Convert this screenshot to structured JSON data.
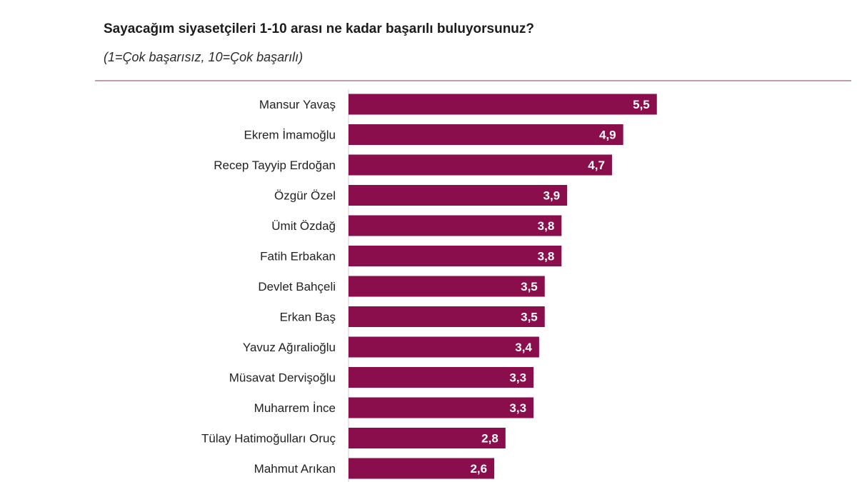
{
  "chart_data": {
    "type": "bar",
    "orientation": "horizontal",
    "title": "Sayacağım siyasetçileri 1-10 arası ne kadar başarılı buluyorsunuz?",
    "subtitle": "(1=Çok başarısız, 10=Çok başarılı)",
    "categories": [
      "Mansur Yavaş",
      "Ekrem İmamoğlu",
      "Recep Tayyip Erdoğan",
      "Özgür Özel",
      "Ümit Özdağ",
      "Fatih Erbakan",
      "Devlet Bahçeli",
      "Erkan Baş",
      "Yavuz Ağıralioğlu",
      "Müsavat Dervişoğlu",
      "Muharrem İnce",
      "Tülay Hatimoğulları Oruç",
      "Mahmut Arıkan"
    ],
    "values": [
      5.5,
      4.9,
      4.7,
      3.9,
      3.8,
      3.8,
      3.5,
      3.5,
      3.4,
      3.3,
      3.3,
      2.8,
      2.6
    ],
    "data_labels": [
      "5,5",
      "4,9",
      "4,7",
      "3,9",
      "3,8",
      "3,8",
      "3,5",
      "3,5",
      "3,4",
      "3,3",
      "3,3",
      "2,8",
      "2,6"
    ],
    "xlim": [
      0,
      10
    ],
    "grid": false,
    "legend": "none",
    "colors": {
      "bar": "#8a0d4c",
      "data_label": "#ffffff",
      "category_label": "#222222",
      "rule": "#b07a93",
      "axis": "#cfcfcf"
    }
  }
}
